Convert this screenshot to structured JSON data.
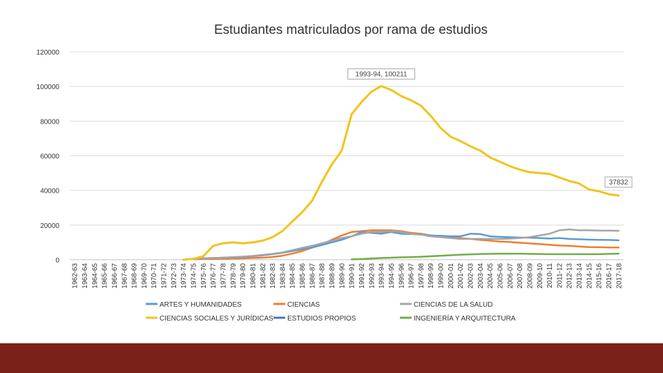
{
  "chart_data": {
    "type": "line",
    "title": "Estudiantes matriculados por rama de estudios",
    "xlabel": "",
    "ylabel": "",
    "ylim": [
      0,
      120000
    ],
    "yticks": [
      0,
      20000,
      40000,
      60000,
      80000,
      100000,
      120000
    ],
    "grid": true,
    "legend_position": "bottom",
    "categories": [
      "1962-63",
      "1963-64",
      "1964-65",
      "1965-66",
      "1966-67",
      "1967-68",
      "1968-69",
      "1969-70",
      "1970-71",
      "1971-72",
      "1972-73",
      "1973-74",
      "1974-75",
      "1975-76",
      "1976-77",
      "1977-78",
      "1978-79",
      "1979-80",
      "1980-81",
      "1981-82",
      "1982-83",
      "1983-84",
      "1984-85",
      "1985-86",
      "1986-87",
      "1987-88",
      "1988-89",
      "1989-90",
      "1990-91",
      "1991-92",
      "1992-93",
      "1993-94",
      "1994-95",
      "1995-96",
      "1996-97",
      "1997-98",
      "1998-99",
      "1999-00",
      "2000-01",
      "2001-02",
      "2002-03",
      "2003-04",
      "2004-05",
      "2005-06",
      "2006-07",
      "2007-08",
      "2008-09",
      "2009-10",
      "2010-11",
      "2011-12",
      "2012-13",
      "2013-14",
      "2014-15",
      "2015-16",
      "2016-17",
      "2017-18"
    ],
    "series": [
      {
        "name": "ARTES Y HUMANIDADES",
        "color": "#5b9bd5",
        "values": [
          null,
          null,
          null,
          null,
          null,
          null,
          null,
          null,
          null,
          null,
          null,
          null,
          500,
          800,
          1000,
          1200,
          1400,
          1600,
          2000,
          2500,
          3200,
          4000,
          5000,
          6000,
          7000,
          8500,
          10000,
          11500,
          13500,
          16000,
          15500,
          15000,
          16000,
          15000,
          14800,
          14500,
          14000,
          13800,
          13500,
          13500,
          15000,
          14800,
          13500,
          13200,
          13000,
          12800,
          12700,
          12500,
          12200,
          12500,
          12000,
          11800,
          11600,
          11500,
          11400,
          11200
        ]
      },
      {
        "name": "CIENCIAS",
        "color": "#ed7d31",
        "values": [
          null,
          null,
          null,
          null,
          null,
          null,
          null,
          null,
          null,
          null,
          null,
          null,
          300,
          400,
          500,
          600,
          700,
          800,
          1000,
          1200,
          1600,
          2300,
          3500,
          5000,
          7000,
          9000,
          11500,
          14000,
          16000,
          16500,
          17000,
          17000,
          17000,
          16500,
          15500,
          15000,
          14000,
          13500,
          13000,
          12500,
          12000,
          11500,
          11000,
          10500,
          10200,
          9800,
          9400,
          9000,
          8600,
          8200,
          8000,
          7600,
          7300,
          7200,
          7100,
          7000
        ]
      },
      {
        "name": "CIENCIAS DE LA SALUD",
        "color": "#a5a5a5",
        "values": [
          null,
          null,
          null,
          null,
          null,
          null,
          null,
          null,
          null,
          null,
          null,
          null,
          500,
          800,
          1000,
          1200,
          1500,
          1800,
          2200,
          2800,
          3400,
          4200,
          5500,
          6800,
          8000,
          9500,
          11000,
          12500,
          13500,
          15000,
          16000,
          16000,
          16500,
          16000,
          15000,
          14500,
          13500,
          13000,
          12500,
          12000,
          12000,
          12000,
          12000,
          12000,
          12200,
          12500,
          13000,
          14000,
          15000,
          17000,
          17500,
          17000,
          17000,
          16800,
          16800,
          16700
        ]
      },
      {
        "name": "CIENCIAS SOCIALES Y JURÍDICAS",
        "color": "#f2c318",
        "values": [
          null,
          null,
          null,
          null,
          null,
          null,
          null,
          null,
          null,
          null,
          null,
          0,
          500,
          2000,
          8000,
          9500,
          10000,
          9500,
          10000,
          11000,
          13000,
          16500,
          22000,
          27500,
          34000,
          45000,
          55000,
          63000,
          84000,
          91000,
          97000,
          100211,
          98000,
          94500,
          92000,
          89000,
          83000,
          76000,
          71000,
          68500,
          65500,
          63000,
          59000,
          56500,
          54000,
          52000,
          50500,
          50000,
          49500,
          47500,
          45500,
          44000,
          40500,
          39500,
          37832,
          37000
        ]
      },
      {
        "name": "ESTUDIOS PROPIOS",
        "color": "#4472c4",
        "values": [
          null,
          null,
          null,
          null,
          null,
          null,
          null,
          null,
          null,
          null,
          null,
          null,
          null,
          null,
          null,
          null,
          null,
          null,
          null,
          null,
          null,
          null,
          null,
          null,
          null,
          null,
          null,
          null,
          null,
          null,
          null,
          null,
          null,
          null,
          null,
          null,
          null,
          null,
          null,
          null,
          null,
          null,
          null,
          null,
          null,
          null,
          null,
          null,
          null,
          null,
          null,
          null,
          null,
          null,
          null,
          null
        ]
      },
      {
        "name": "INGENIERÍA Y ARQUITECTURA",
        "color": "#70ad47",
        "values": [
          null,
          null,
          null,
          null,
          null,
          null,
          null,
          null,
          null,
          null,
          null,
          null,
          null,
          null,
          null,
          null,
          null,
          null,
          null,
          null,
          null,
          null,
          null,
          null,
          null,
          null,
          null,
          null,
          200,
          400,
          700,
          1000,
          1200,
          1400,
          1500,
          1700,
          2000,
          2300,
          2600,
          2900,
          3100,
          3300,
          3400,
          3500,
          3500,
          3500,
          3400,
          3300,
          3200,
          3200,
          3200,
          3200,
          3200,
          3200,
          3400,
          3500
        ]
      }
    ],
    "annotations": [
      {
        "category": "1993-94",
        "series": "CIENCIAS SOCIALES Y JURÍDICAS",
        "text": "1993-94, 100211"
      },
      {
        "category": "2016-17",
        "series": "CIENCIAS SOCIALES Y JURÍDICAS",
        "text": "37832"
      }
    ]
  }
}
